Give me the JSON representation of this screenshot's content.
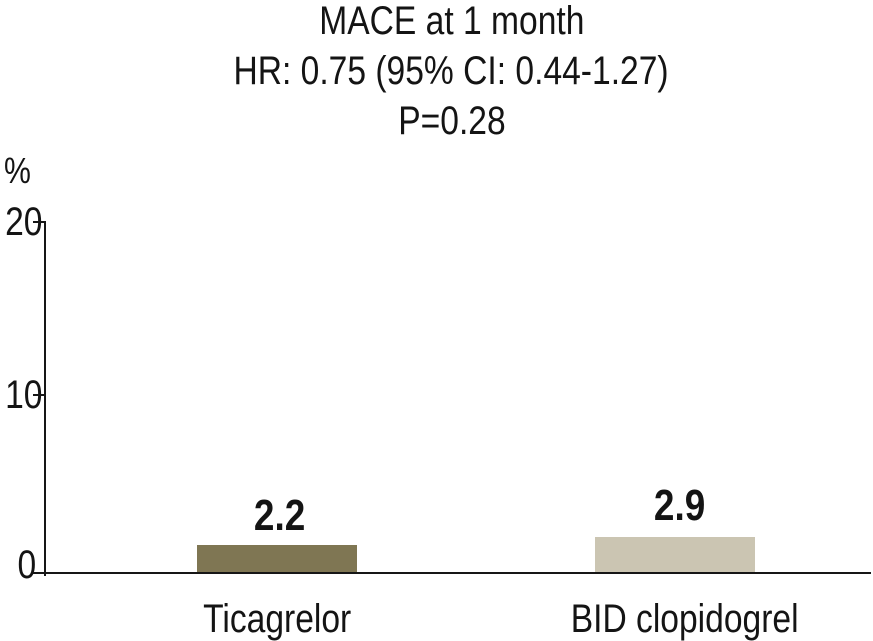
{
  "chart_data": {
    "type": "bar",
    "title_lines": [
      "MACE at 1 month",
      "HR: 0.75 (95% CI: 0.44-1.27)",
      "P=0.28"
    ],
    "stats": {
      "hazard_ratio": "0.75",
      "ci_95": "0.44-1.27",
      "p_value": "0.28"
    },
    "categories": [
      "Ticagrelor",
      "BID clopidogrel"
    ],
    "values": [
      2.2,
      2.9
    ],
    "bar_colors": [
      "#7f7653",
      "#cbc5b2"
    ],
    "ylabel": "%",
    "yticks": [
      0,
      10,
      20
    ],
    "ylim": [
      0,
      20
    ],
    "grid": false,
    "legend": "none",
    "axis_color": "#161616"
  }
}
